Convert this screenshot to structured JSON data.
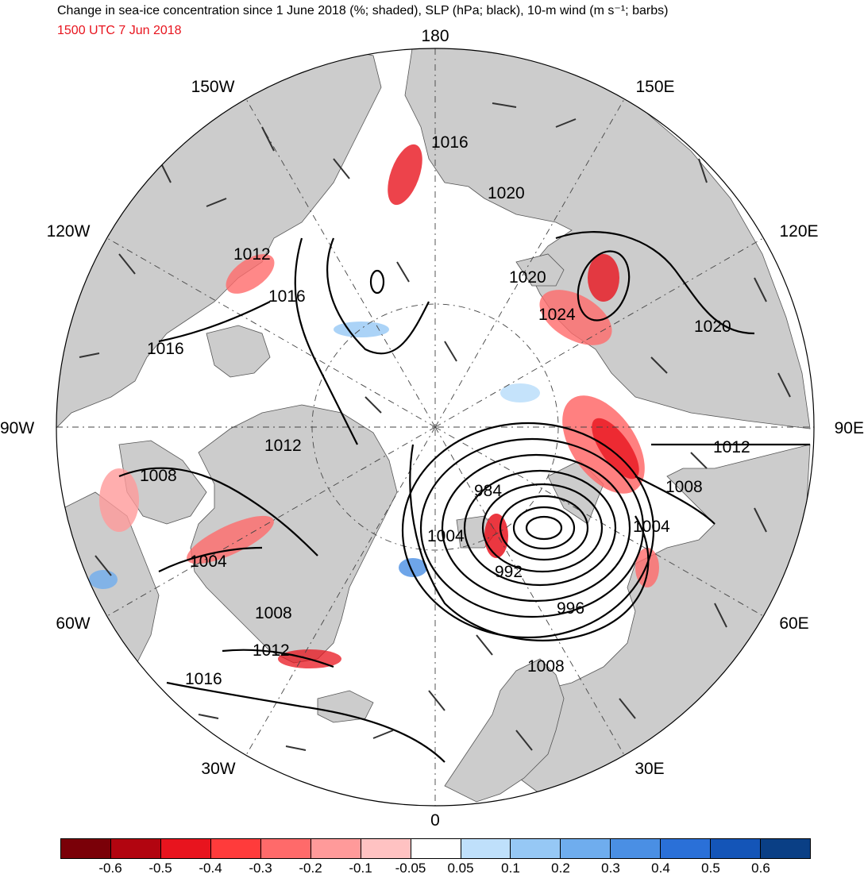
{
  "title": "Change in sea-ice concentration since 1 June 2018 (%; shaded), SLP (hPa; black), 10-m wind (m s⁻¹; barbs)",
  "subtitle": "1500 UTC 7 Jun 2018",
  "lon_labels": {
    "top": "180",
    "bottom": "0",
    "left": "90W",
    "right": "90E",
    "w150": "150W",
    "e150": "150E",
    "w120": "120W",
    "e120": "120E",
    "w60": "60W",
    "e60": "60E",
    "w30": "30W",
    "e30": "30E"
  },
  "slp_contours": [
    "1016",
    "1020",
    "1012",
    "1016",
    "1016",
    "1020",
    "1024",
    "1020",
    "1012",
    "1008",
    "1012",
    "984",
    "1004",
    "1008",
    "1004",
    "992",
    "996",
    "1004",
    "1008",
    "1012",
    "1016",
    "1008"
  ],
  "colorbar": {
    "colors": [
      "#7a0008",
      "#b20510",
      "#e8141e",
      "#ff3b3b",
      "#ff6a6a",
      "#ff9a9a",
      "#ffc2c2",
      "#ffffff",
      "#bfe0fb",
      "#96c8f5",
      "#6fadee",
      "#4a8fe4",
      "#2a70d8",
      "#1455b8",
      "#0a3f85"
    ],
    "ticks": [
      "-0.6",
      "-0.5",
      "-0.4",
      "-0.3",
      "-0.2",
      "-0.1",
      "-0.05",
      "0.05",
      "0.1",
      "0.2",
      "0.3",
      "0.4",
      "0.5",
      "0.6"
    ]
  },
  "map_colors": {
    "land": "#cccccc",
    "ocean": "#ffffff",
    "contour": "#000000"
  }
}
